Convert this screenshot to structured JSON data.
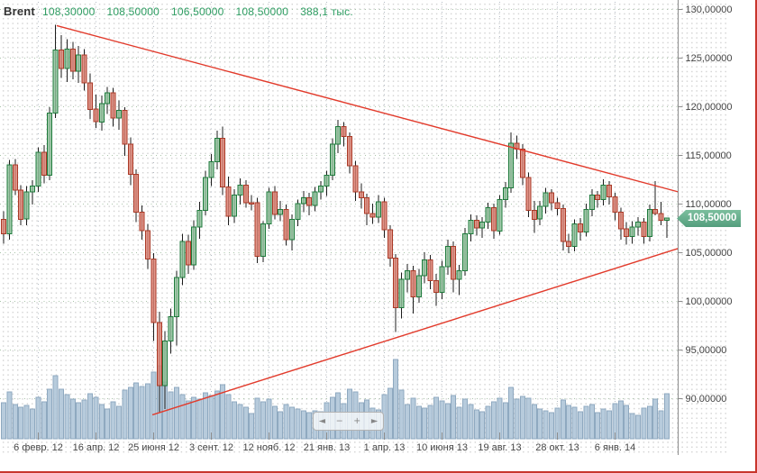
{
  "header": {
    "symbol": "Brent",
    "open": "108,30000",
    "high": "108,50000",
    "low": "106,50000",
    "close": "108,50000",
    "volume": "388,1 тыс."
  },
  "price_badge": {
    "label": "108,50000",
    "price": 108.5
  },
  "nav": {
    "buttons": [
      {
        "name": "scroll-left",
        "glyph": "◄"
      },
      {
        "name": "zoom-out",
        "glyph": "−"
      },
      {
        "name": "zoom-in",
        "glyph": "+"
      },
      {
        "name": "scroll-right",
        "glyph": "►"
      }
    ]
  },
  "colors": {
    "candle_up_fill": "#8fc29b",
    "candle_up_stroke": "#1f7a3c",
    "candle_down_fill": "#dd8071",
    "candle_down_stroke": "#a93a27",
    "wick": "#1c1c1c",
    "volume_fill": "#b3c8da",
    "volume_stroke": "#8fa9c0",
    "trendline": "#e23b2c",
    "grid_h_accent": "#a9c4a9",
    "grid_v_accent": "#b4bcc6",
    "axis_line": "#8c8c8c",
    "axis_text": "#454545",
    "badge_green": "#5aa783",
    "header_value_green": "#2f9e63",
    "window_border": "#c8352c"
  },
  "chart_data": {
    "type": "candlestick",
    "symbol": "Brent",
    "timeframe": "weekly",
    "title": "Brent 108,30000 108,50000 106,50000 108,50000 388,1 тыс.",
    "last_price": 108.5,
    "price_axis": {
      "side": "right",
      "max_value": 130,
      "min_value": 88,
      "tick_values": [
        130,
        125,
        120,
        115,
        110,
        105,
        100,
        95,
        90
      ],
      "tick_labels": [
        "130,00000",
        "125,00000",
        "120,00000",
        "115,00000",
        "110,00000",
        "105,00000",
        "100,00000",
        "95,00000",
        "90,00000"
      ]
    },
    "time_axis": {
      "tick_indices": [
        6,
        16,
        26,
        36,
        46,
        56,
        66,
        76,
        86,
        96,
        106
      ],
      "tick_labels": [
        "6 февр. 12",
        "16 апр. 12",
        "25 июня 12",
        "3 сент. 12",
        "12 нояб. 12",
        "21 янв. 13",
        "1 апр. 13",
        "10 июня 13",
        "19 авг. 13",
        "28 окт. 13",
        "6 янв. 14"
      ]
    },
    "candles_format": [
      "open",
      "high",
      "low",
      "close",
      "volume"
    ],
    "candles": [
      [
        108.4,
        109.2,
        105.9,
        106.9,
        40
      ],
      [
        106.9,
        114.5,
        106.3,
        114.0,
        52
      ],
      [
        114.0,
        114.6,
        110.9,
        111.4,
        38
      ],
      [
        111.4,
        111.9,
        107.8,
        108.4,
        35
      ],
      [
        108.4,
        111.8,
        107.8,
        111.2,
        37
      ],
      [
        111.2,
        112.4,
        109.9,
        111.8,
        33
      ],
      [
        111.8,
        115.8,
        111.2,
        115.3,
        46
      ],
      [
        115.3,
        116.0,
        112.1,
        112.9,
        41
      ],
      [
        112.9,
        119.9,
        112.4,
        119.3,
        55
      ],
      [
        119.3,
        128.4,
        118.8,
        125.8,
        70
      ],
      [
        125.8,
        127.3,
        122.9,
        123.9,
        55
      ],
      [
        123.9,
        126.9,
        122.5,
        125.9,
        49
      ],
      [
        125.9,
        126.6,
        122.8,
        123.6,
        44
      ],
      [
        123.6,
        126.2,
        122.4,
        125.3,
        40
      ],
      [
        125.3,
        125.9,
        121.6,
        122.4,
        43
      ],
      [
        122.4,
        123.4,
        118.7,
        119.7,
        50
      ],
      [
        119.7,
        121.2,
        117.8,
        118.4,
        46
      ],
      [
        118.4,
        121.1,
        117.5,
        120.3,
        38
      ],
      [
        120.3,
        122.0,
        119.2,
        121.4,
        33
      ],
      [
        121.4,
        121.9,
        117.9,
        118.8,
        41
      ],
      [
        118.8,
        120.6,
        117.6,
        119.6,
        36
      ],
      [
        119.6,
        119.9,
        114.9,
        116.1,
        54
      ],
      [
        116.1,
        116.8,
        111.9,
        113.0,
        57
      ],
      [
        113.0,
        113.5,
        108.1,
        109.1,
        62
      ],
      [
        109.1,
        109.8,
        106.3,
        107.2,
        58
      ],
      [
        107.2,
        107.9,
        103.3,
        104.3,
        61
      ],
      [
        104.3,
        104.9,
        95.9,
        97.8,
        74
      ],
      [
        97.8,
        98.9,
        88.5,
        91.3,
        81
      ],
      [
        91.3,
        96.9,
        88.9,
        95.9,
        63
      ],
      [
        95.9,
        99.2,
        94.6,
        98.4,
        52
      ],
      [
        98.4,
        103.1,
        95.4,
        102.4,
        57
      ],
      [
        102.4,
        106.9,
        101.6,
        106.1,
        49
      ],
      [
        106.1,
        106.8,
        102.8,
        103.7,
        42
      ],
      [
        103.7,
        108.3,
        103.2,
        107.6,
        46
      ],
      [
        107.6,
        110.2,
        106.4,
        109.3,
        44
      ],
      [
        109.3,
        113.4,
        108.8,
        112.7,
        51
      ],
      [
        112.7,
        115.1,
        111.8,
        114.3,
        48
      ],
      [
        114.3,
        117.5,
        113.5,
        116.7,
        53
      ],
      [
        116.7,
        117.9,
        110.9,
        111.7,
        60
      ],
      [
        111.7,
        112.8,
        107.8,
        108.7,
        49
      ],
      [
        108.7,
        111.5,
        108.0,
        110.9,
        41
      ],
      [
        110.9,
        112.6,
        109.9,
        111.9,
        38
      ],
      [
        111.9,
        112.4,
        109.6,
        110.1,
        35
      ],
      [
        110.1,
        110.9,
        109.3,
        110.0,
        28
      ],
      [
        110.1,
        110.6,
        103.9,
        104.6,
        45
      ],
      [
        104.6,
        108.2,
        104.0,
        107.9,
        41
      ],
      [
        107.9,
        111.6,
        107.4,
        111.2,
        44
      ],
      [
        111.2,
        111.8,
        108.4,
        108.9,
        36
      ],
      [
        108.9,
        110.3,
        108.2,
        109.4,
        30
      ],
      [
        109.4,
        109.9,
        105.7,
        106.3,
        38
      ],
      [
        106.3,
        108.9,
        105.2,
        108.4,
        35
      ],
      [
        108.4,
        110.4,
        107.7,
        110.0,
        33
      ],
      [
        110.0,
        111.3,
        109.1,
        110.6,
        31
      ],
      [
        110.6,
        111.1,
        108.8,
        109.8,
        29
      ],
      [
        109.8,
        111.7,
        109.2,
        111.2,
        31
      ],
      [
        111.2,
        112.3,
        110.4,
        111.8,
        30
      ],
      [
        111.8,
        113.4,
        110.8,
        112.9,
        40
      ],
      [
        112.9,
        116.7,
        112.4,
        116.1,
        46
      ],
      [
        116.1,
        118.6,
        115.2,
        117.9,
        51
      ],
      [
        117.9,
        118.4,
        115.9,
        116.9,
        39
      ],
      [
        116.9,
        117.3,
        113.1,
        113.9,
        55
      ],
      [
        113.9,
        114.4,
        110.3,
        111.2,
        52
      ],
      [
        111.2,
        112.1,
        109.5,
        110.6,
        40
      ],
      [
        110.6,
        111.0,
        107.8,
        109.0,
        43
      ],
      [
        109.0,
        110.0,
        107.9,
        108.6,
        34
      ],
      [
        108.6,
        110.9,
        108.0,
        110.2,
        32
      ],
      [
        110.2,
        110.6,
        106.5,
        107.3,
        49
      ],
      [
        107.3,
        107.8,
        103.5,
        104.4,
        56
      ],
      [
        104.4,
        104.8,
        96.8,
        99.3,
        88
      ],
      [
        99.3,
        102.9,
        98.2,
        102.2,
        54
      ],
      [
        102.2,
        103.8,
        100.9,
        103.1,
        38
      ],
      [
        103.1,
        103.6,
        98.7,
        100.4,
        45
      ],
      [
        100.4,
        103.3,
        99.8,
        102.6,
        36
      ],
      [
        102.6,
        105.0,
        101.8,
        104.2,
        34
      ],
      [
        104.2,
        104.7,
        101.2,
        102.1,
        37
      ],
      [
        102.1,
        102.8,
        99.5,
        100.9,
        46
      ],
      [
        100.9,
        104.1,
        100.2,
        103.5,
        42
      ],
      [
        103.5,
        106.3,
        102.7,
        105.6,
        39
      ],
      [
        105.6,
        106.1,
        100.9,
        102.2,
        48
      ],
      [
        102.2,
        103.7,
        100.6,
        103.1,
        35
      ],
      [
        103.1,
        107.5,
        102.6,
        106.9,
        44
      ],
      [
        106.9,
        108.9,
        106.1,
        108.3,
        38
      ],
      [
        108.3,
        108.8,
        106.7,
        107.5,
        32
      ],
      [
        107.5,
        108.6,
        106.5,
        108.1,
        30
      ],
      [
        108.1,
        110.1,
        107.4,
        109.6,
        36
      ],
      [
        109.6,
        110.0,
        106.4,
        107.2,
        41
      ],
      [
        107.2,
        110.9,
        106.8,
        110.4,
        45
      ],
      [
        110.4,
        112.2,
        109.6,
        111.6,
        40
      ],
      [
        111.6,
        117.3,
        111.1,
        116.2,
        57
      ],
      [
        116.2,
        117.0,
        114.6,
        115.6,
        44
      ],
      [
        115.6,
        116.1,
        111.9,
        112.7,
        47
      ],
      [
        112.7,
        113.2,
        108.6,
        109.3,
        45
      ],
      [
        109.3,
        110.3,
        107.0,
        108.4,
        38
      ],
      [
        108.4,
        110.3,
        107.8,
        109.7,
        33
      ],
      [
        109.7,
        111.6,
        109.0,
        111.1,
        31
      ],
      [
        111.1,
        111.5,
        109.3,
        110.1,
        29
      ],
      [
        110.1,
        110.6,
        108.8,
        109.5,
        34
      ],
      [
        109.5,
        109.9,
        105.2,
        106.1,
        43
      ],
      [
        106.1,
        106.9,
        104.9,
        105.6,
        37
      ],
      [
        105.6,
        108.4,
        105.1,
        107.9,
        35
      ],
      [
        107.9,
        108.5,
        106.2,
        107.1,
        30
      ],
      [
        107.1,
        110.0,
        106.6,
        109.4,
        36
      ],
      [
        109.4,
        111.5,
        108.7,
        110.9,
        38
      ],
      [
        110.9,
        111.3,
        109.6,
        110.4,
        29
      ],
      [
        110.4,
        112.5,
        109.8,
        111.9,
        33
      ],
      [
        111.9,
        112.3,
        109.9,
        110.7,
        31
      ],
      [
        110.7,
        111.1,
        108.3,
        109.1,
        39
      ],
      [
        109.1,
        109.6,
        106.3,
        107.4,
        42
      ],
      [
        107.4,
        108.1,
        105.8,
        106.6,
        37
      ],
      [
        106.6,
        108.2,
        105.9,
        107.6,
        28
      ],
      [
        107.6,
        108.6,
        106.7,
        108.1,
        26
      ],
      [
        108.1,
        108.5,
        105.9,
        106.6,
        34
      ],
      [
        106.6,
        109.9,
        106.1,
        109.4,
        36
      ],
      [
        109.4,
        112.3,
        108.8,
        109.0,
        44
      ],
      [
        109.0,
        110.2,
        107.8,
        108.3,
        31
      ],
      [
        108.3,
        108.5,
        106.5,
        108.5,
        50
      ]
    ],
    "trendlines": [
      {
        "name": "descending-resistance",
        "from": {
          "index": 9.2,
          "price": 128.3
        },
        "to": {
          "index": 117,
          "price": 111.2
        }
      },
      {
        "name": "ascending-support",
        "from": {
          "index": 25.8,
          "price": 88.3
        },
        "to": {
          "index": 117,
          "price": 105.4
        }
      }
    ],
    "legend_position": "none",
    "grid": "dotted"
  }
}
